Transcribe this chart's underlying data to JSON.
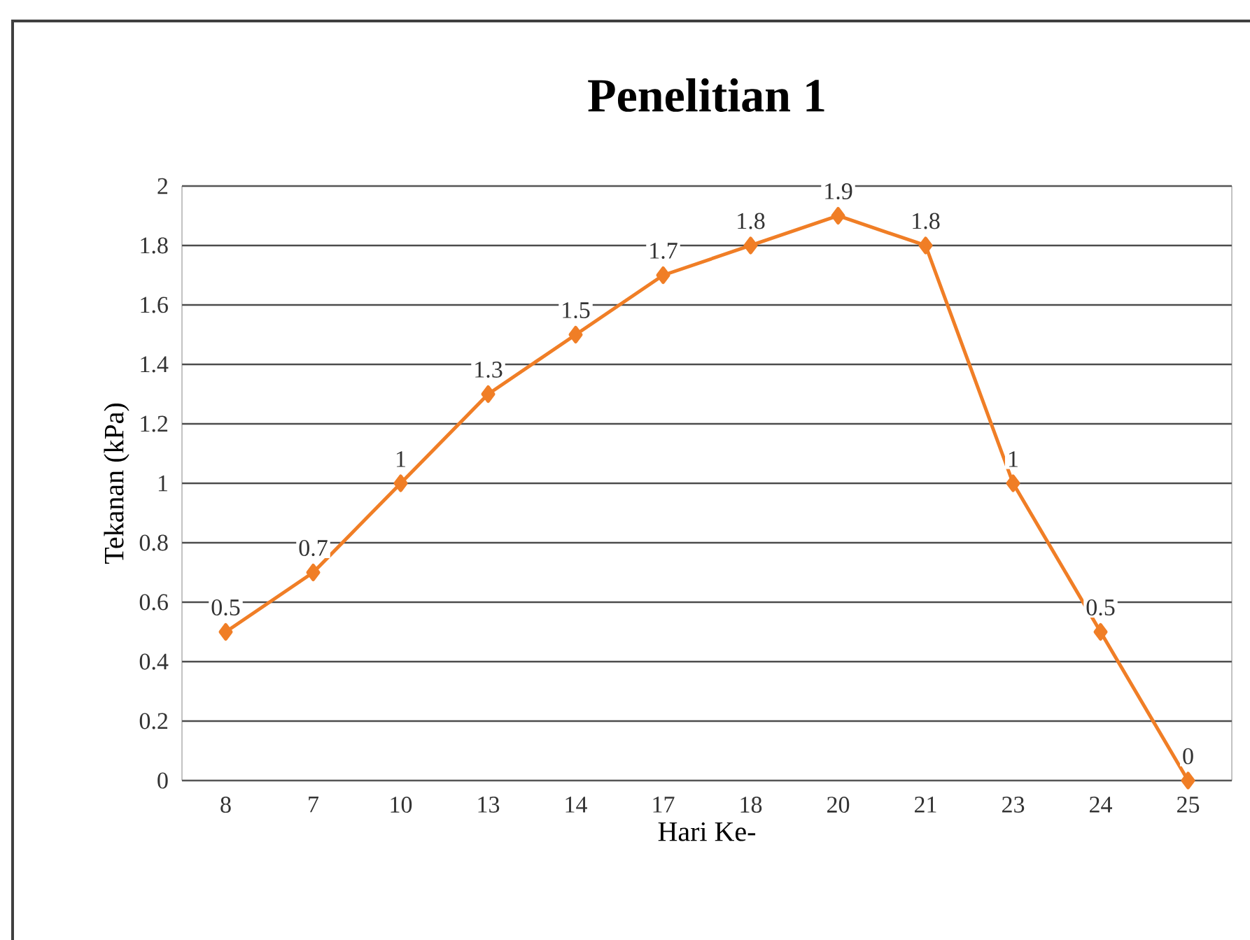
{
  "chart_data": {
    "type": "line",
    "title": "Penelitian 1",
    "xlabel": "Hari Ke-",
    "ylabel": "Tekanan (kPa)",
    "categories": [
      "8",
      "7",
      "10",
      "13",
      "14",
      "17",
      "18",
      "20",
      "21",
      "23",
      "24",
      "25"
    ],
    "values": [
      0.5,
      0.7,
      1,
      1.3,
      1.5,
      1.7,
      1.8,
      1.9,
      1.8,
      1,
      0.5,
      0
    ],
    "color": "#f07e26",
    "ylim": [
      0,
      2
    ],
    "yticks": [
      0,
      0.2,
      0.4,
      0.6,
      0.8,
      1,
      1.2,
      1.4,
      1.6,
      1.8,
      2
    ],
    "grid": "y",
    "marker": "diamond",
    "line_style": "solid",
    "data_labels": true
  }
}
